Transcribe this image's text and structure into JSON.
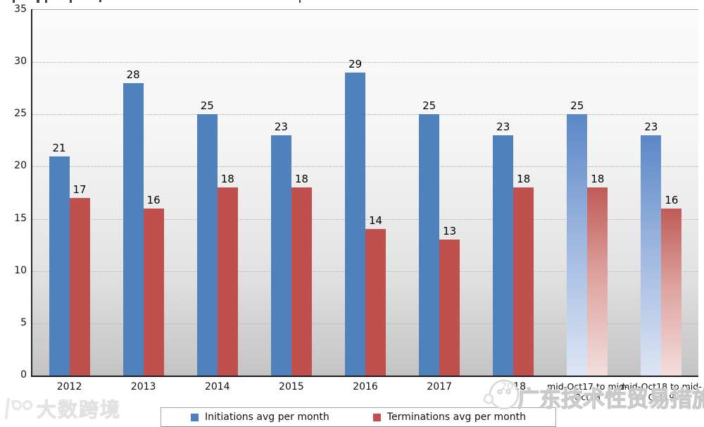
{
  "chart_data": {
    "type": "bar",
    "categories": [
      "2012",
      "2013",
      "2014",
      "2015",
      "2016",
      "2017",
      "2018",
      "mid-Oct17 to mid-Oct18",
      "mid-Oct18 to mid-Oct19"
    ],
    "series": [
      {
        "name": "Initiations avg per month",
        "color": "#4f81bd",
        "values": [
          21,
          28,
          25,
          23,
          29,
          25,
          23,
          25,
          23
        ]
      },
      {
        "name": "Terminations avg per month",
        "color": "#c0504d",
        "values": [
          17,
          16,
          18,
          18,
          14,
          13,
          18,
          18,
          16
        ]
      }
    ],
    "gradient_last_n_categories": 2,
    "ylim": [
      0,
      35
    ],
    "ytick_step": 5,
    "grid": "horizontal-dotted",
    "legend_position": "bottom",
    "bar_value_labels": true
  },
  "legend": {
    "items": [
      {
        "label": "Initiations avg per month",
        "color": "#4f81bd"
      },
      {
        "label": "Terminations avg per month",
        "color": "#c0504d"
      }
    ]
  },
  "watermarks": {
    "bottom_left_logo": "大数跨境",
    "overlay_text": "广东技术性贸易措施"
  },
  "colors": {
    "initiations": "#4f81bd",
    "terminations": "#c0504d",
    "initiations_gradient_top": "#5b87c7",
    "initiations_gradient_bottom": "#dde6f5",
    "terminations_gradient_top": "#bf5b57",
    "terminations_gradient_bottom": "#f3dedd",
    "axis": "#1c1c1c",
    "gridline": "#b0b0b0"
  }
}
